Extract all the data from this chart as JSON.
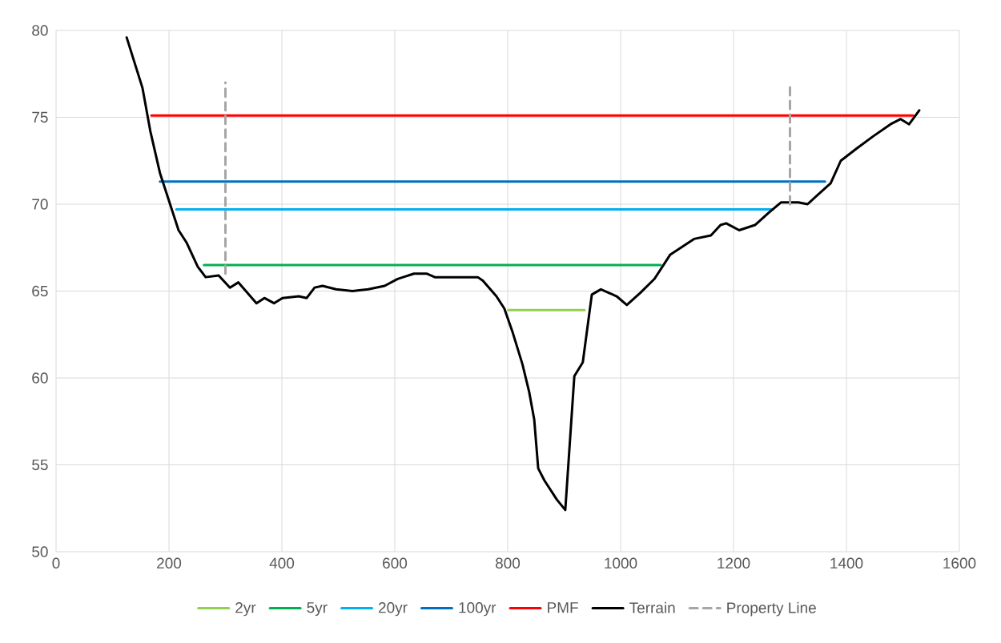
{
  "chart_data": {
    "type": "line",
    "xlim": [
      0,
      1600
    ],
    "xticks": [
      0,
      200,
      400,
      600,
      800,
      1000,
      1200,
      1400,
      1600
    ],
    "ylim": [
      50,
      80
    ],
    "yticks": [
      50,
      55,
      60,
      65,
      70,
      75,
      80
    ],
    "grid": true,
    "legend": "bottom",
    "marker": "none",
    "series": [
      {
        "name": "2yr",
        "color": "#92d050",
        "x": [
          801,
          936
        ],
        "values": [
          63.9,
          63.9
        ]
      },
      {
        "name": "5yr",
        "color": "#00b050",
        "x": [
          262,
          1071
        ],
        "values": [
          66.5,
          66.5
        ]
      },
      {
        "name": "20yr",
        "color": "#00b0f0",
        "x": [
          213,
          1270
        ],
        "values": [
          69.7,
          69.7
        ]
      },
      {
        "name": "100yr",
        "color": "#0070c0",
        "x": [
          184,
          1362
        ],
        "values": [
          71.3,
          71.3
        ]
      },
      {
        "name": "PMF",
        "color": "#ff0000",
        "x": [
          169,
          1518
        ],
        "values": [
          75.1,
          75.1
        ]
      },
      {
        "name": "Terrain",
        "color": "#000000",
        "x": [
          125,
          153,
          167,
          184,
          203,
          217,
          231,
          251,
          265,
          288,
          308,
          323,
          355,
          369,
          386,
          401,
          430,
          444,
          458,
          472,
          496,
          525,
          553,
          582,
          605,
          634,
          657,
          671,
          705,
          747,
          756,
          780,
          794,
          809,
          826,
          838,
          847,
          854,
          865,
          887,
          902,
          918,
          933,
          949,
          965,
          993,
          1011,
          1035,
          1060,
          1088,
          1130,
          1160,
          1177,
          1187,
          1210,
          1238,
          1262,
          1284,
          1315,
          1331,
          1372,
          1390,
          1418,
          1447,
          1478,
          1496,
          1511,
          1529
        ],
        "values": [
          79.6,
          76.7,
          74.2,
          71.8,
          69.9,
          68.5,
          67.8,
          66.4,
          65.8,
          65.9,
          65.2,
          65.5,
          64.3,
          64.6,
          64.3,
          64.6,
          64.7,
          64.6,
          65.2,
          65.3,
          65.1,
          65.0,
          65.1,
          65.3,
          65.7,
          66.0,
          66.0,
          65.8,
          65.8,
          65.8,
          65.6,
          64.7,
          64.0,
          62.6,
          60.8,
          59.2,
          57.6,
          54.8,
          54.1,
          53.0,
          52.4,
          60.1,
          60.9,
          64.8,
          65.1,
          64.7,
          64.2,
          64.9,
          65.7,
          67.1,
          68.0,
          68.2,
          68.8,
          68.9,
          68.5,
          68.8,
          69.5,
          70.1,
          70.1,
          70.0,
          71.2,
          72.5,
          73.2,
          73.9,
          74.6,
          74.9,
          74.6,
          75.4
        ]
      },
      {
        "name": "Property Line",
        "color": "#a6a6a6",
        "line_style": "dashed",
        "x": [
          300,
          300,
          null,
          1300,
          1300
        ],
        "values": [
          66.0,
          77.0,
          null,
          70.0,
          77.0
        ]
      }
    ]
  }
}
